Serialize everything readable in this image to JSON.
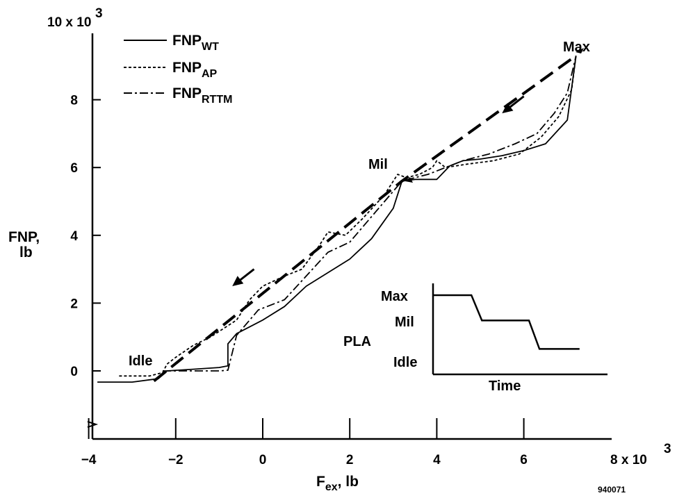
{
  "chart_data": {
    "type": "line",
    "xlabel": {
      "main": "F",
      "sub": "ex",
      "rest": ", lb"
    },
    "ylabel": {
      "line1": "FNP,",
      "line2": "lb"
    },
    "x_ticks": [
      {
        "value": -4,
        "label": "−4"
      },
      {
        "value": -2,
        "label": "−2"
      },
      {
        "value": 0,
        "label": "0"
      },
      {
        "value": 2,
        "label": "2"
      },
      {
        "value": 4,
        "label": "4"
      },
      {
        "value": 6,
        "label": "6"
      },
      {
        "value": 8,
        "label": "8 x 10"
      }
    ],
    "x_tick_exp": "3",
    "y_ticks": [
      {
        "value": 0,
        "label": "0"
      },
      {
        "value": 2,
        "label": "2"
      },
      {
        "value": 4,
        "label": "4"
      },
      {
        "value": 6,
        "label": "6"
      },
      {
        "value": 8,
        "label": "8"
      },
      {
        "value": 10,
        "label": "10 x 10"
      }
    ],
    "y_tick_exp": "3",
    "xlim": [
      -4.3,
      8
    ],
    "ylim": [
      -1.9,
      10
    ],
    "units_multiplier": 1000,
    "series": [
      {
        "name": "FNP",
        "name_sub": "WT",
        "style": "solid",
        "points": [
          [
            -3.8,
            -0.33
          ],
          [
            -3.0,
            -0.33
          ],
          [
            -2.4,
            -0.23
          ],
          [
            -2.2,
            0.0
          ],
          [
            -1.6,
            0.05
          ],
          [
            -1.0,
            0.1
          ],
          [
            -0.8,
            0.15
          ],
          [
            -0.8,
            0.8
          ],
          [
            -0.6,
            1.1
          ],
          [
            0.0,
            1.5
          ],
          [
            0.5,
            1.9
          ],
          [
            1.0,
            2.5
          ],
          [
            1.5,
            2.9
          ],
          [
            2.0,
            3.3
          ],
          [
            2.5,
            3.9
          ],
          [
            3.0,
            4.8
          ],
          [
            3.2,
            5.6
          ],
          [
            3.5,
            5.65
          ],
          [
            4.0,
            5.65
          ],
          [
            4.3,
            6.05
          ],
          [
            4.6,
            6.2
          ],
          [
            5.0,
            6.25
          ],
          [
            5.5,
            6.35
          ],
          [
            6.0,
            6.5
          ],
          [
            6.5,
            6.7
          ],
          [
            7.0,
            7.4
          ],
          [
            7.2,
            9.3
          ]
        ]
      },
      {
        "name": "FNP",
        "name_sub": "AP",
        "style": "dashed",
        "points": [
          [
            -3.3,
            -0.15
          ],
          [
            -2.6,
            -0.15
          ],
          [
            -2.3,
            -0.05
          ],
          [
            -2.2,
            0.2
          ],
          [
            -2.0,
            0.4
          ],
          [
            -1.6,
            0.75
          ],
          [
            -1.2,
            1.0
          ],
          [
            -0.6,
            1.5
          ],
          [
            -0.3,
            2.1
          ],
          [
            0.0,
            2.5
          ],
          [
            0.5,
            2.8
          ],
          [
            0.9,
            3.0
          ],
          [
            1.3,
            3.7
          ],
          [
            1.5,
            4.1
          ],
          [
            1.9,
            4.0
          ],
          [
            2.3,
            4.5
          ],
          [
            2.8,
            5.2
          ],
          [
            3.1,
            5.8
          ],
          [
            3.3,
            5.7
          ],
          [
            3.6,
            5.8
          ],
          [
            3.9,
            6.0
          ],
          [
            4.0,
            6.2
          ],
          [
            4.2,
            6.0
          ],
          [
            4.7,
            6.1
          ],
          [
            5.3,
            6.2
          ],
          [
            5.9,
            6.4
          ],
          [
            6.4,
            6.9
          ],
          [
            6.8,
            7.5
          ],
          [
            7.1,
            8.3
          ],
          [
            7.2,
            9.3
          ]
        ]
      },
      {
        "name": "FNP",
        "name_sub": "RTTM",
        "style": "dashdot",
        "points": [
          [
            -2.3,
            0.0
          ],
          [
            -1.0,
            0.0
          ],
          [
            -0.8,
            0.02
          ],
          [
            -0.6,
            1.05
          ],
          [
            -0.1,
            1.8
          ],
          [
            0.5,
            2.1
          ],
          [
            1.0,
            2.8
          ],
          [
            1.5,
            3.5
          ],
          [
            2.0,
            3.8
          ],
          [
            2.6,
            4.7
          ],
          [
            3.2,
            5.6
          ],
          [
            3.5,
            5.7
          ],
          [
            3.8,
            5.8
          ],
          [
            4.2,
            6.0
          ],
          [
            4.6,
            6.2
          ],
          [
            5.2,
            6.4
          ],
          [
            5.8,
            6.7
          ],
          [
            6.3,
            7.0
          ],
          [
            6.7,
            7.6
          ],
          [
            7.0,
            8.2
          ],
          [
            7.2,
            9.3
          ]
        ]
      },
      {
        "name": "",
        "style": "longdash",
        "points": [
          [
            -2.5,
            -0.3
          ],
          [
            3.2,
            5.6
          ],
          [
            7.2,
            9.3
          ]
        ]
      }
    ],
    "annotations": {
      "max": {
        "label": "Max",
        "x": 7.2,
        "y": 9.3
      },
      "mil": {
        "label": "Mil",
        "x": 3.2,
        "y": 5.6
      },
      "idle": {
        "label": "Idle",
        "x": -2.4,
        "y": -0.2
      }
    },
    "arrows": [
      {
        "from": [
          6.0,
          8.1
        ],
        "to": [
          5.5,
          7.6
        ]
      },
      {
        "from": [
          -0.2,
          3.0
        ],
        "to": [
          -0.7,
          2.5
        ]
      }
    ],
    "inset": {
      "ylabel": "PLA",
      "xlabel": "Time",
      "levels": [
        "Max",
        "Mil",
        "Idle"
      ],
      "profile": [
        [
          0.0,
          1.0
        ],
        [
          0.22,
          1.0
        ],
        [
          0.28,
          0.6
        ],
        [
          0.55,
          0.6
        ],
        [
          0.61,
          0.15
        ],
        [
          0.84,
          0.15
        ]
      ]
    },
    "figure_id": "940071"
  }
}
